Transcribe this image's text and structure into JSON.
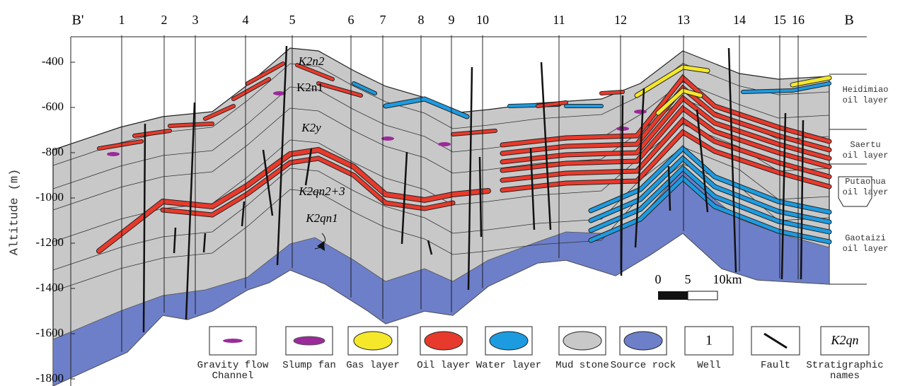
{
  "section": {
    "left_end": "B'",
    "right_end": "B",
    "wells": [
      "1",
      "2",
      "3",
      "4",
      "5",
      "6",
      "7",
      "8",
      "9",
      "10",
      "11",
      "12",
      "13",
      "14",
      "15",
      "16"
    ],
    "strata": [
      "K2n2",
      "K2n1",
      "K2y",
      "K2qn2+3",
      "K2qn1"
    ]
  },
  "axis": {
    "label": "Altitude (m)",
    "ticks": [
      -400,
      -600,
      -800,
      -1000,
      -1200,
      -1400,
      -1600,
      -1800
    ]
  },
  "oil_layers": [
    "Heidimiao oil layer",
    "Saertu oil layer",
    "Putaohua oil layer",
    "Gaotaizi oil layer"
  ],
  "scale_bar": [
    "0",
    "5",
    "10km"
  ],
  "legend": [
    {
      "label": "Gravity flow Channel"
    },
    {
      "label": "Slump fan"
    },
    {
      "label": "Gas layer"
    },
    {
      "label": "Oil layer"
    },
    {
      "label": "Water layer"
    },
    {
      "label": "Mud stone"
    },
    {
      "label": "Source rock"
    },
    {
      "label": "Well",
      "symbol": "1"
    },
    {
      "label": "Fault"
    },
    {
      "label": "Stratigraphic names",
      "symbol": "K2qn"
    }
  ]
}
